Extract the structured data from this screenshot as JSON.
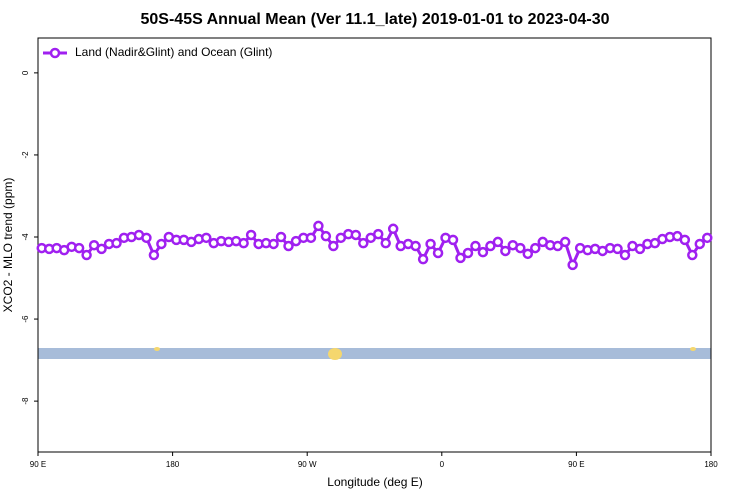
{
  "chart_data": {
    "type": "line",
    "title": "50S-45S Annual Mean (Ver 11.1_late)   2019-01-01 to 2023-04-30",
    "x_label": "Longitude (deg E)",
    "y_label": "XCO2 - MLO trend (ppm)",
    "xlim": [
      90,
      540
    ],
    "xticks": [
      {
        "value": 90,
        "label": "90 E"
      },
      180,
      {
        "value": 270,
        "label": "90 W"
      },
      {
        "value": 360,
        "label": "0"
      },
      {
        "value": 450,
        "label": "90 E"
      },
      {
        "value": 540,
        "label": "180"
      }
    ],
    "ylim": [
      -9.24,
      0.85
    ],
    "yticks": [
      0,
      -2,
      -4,
      -6,
      -8
    ],
    "legend": "upper left",
    "x": [
      92.5,
      97.5,
      102.5,
      107.5,
      112.5,
      117.5,
      122.5,
      127.5,
      132.5,
      137.5,
      142.5,
      147.5,
      152.5,
      157.5,
      162.5,
      167.5,
      172.5,
      177.5,
      182.5,
      187.5,
      192.5,
      197.5,
      202.5,
      207.5,
      212.5,
      217.5,
      222.5,
      227.5,
      232.5,
      237.5,
      242.5,
      247.5,
      252.5,
      257.5,
      262.5,
      267.5,
      272.5,
      277.5,
      282.5,
      287.5,
      292.5,
      297.5,
      302.5,
      307.5,
      312.5,
      317.5,
      322.5,
      327.5,
      332.5,
      337.5,
      342.5,
      347.5,
      352.5,
      357.5,
      362.5,
      367.5,
      372.5,
      377.5,
      382.5,
      387.5,
      392.5,
      397.5,
      402.5,
      407.5,
      412.5,
      417.5,
      422.5,
      427.5,
      432.5,
      437.5,
      442.5,
      447.5,
      452.5,
      457.5,
      462.5,
      467.5,
      472.5,
      477.5,
      482.5,
      487.5,
      492.5,
      497.5,
      502.5,
      507.5,
      512.5,
      517.5,
      522.5,
      527.5,
      532.5,
      537.5
    ],
    "series": [
      {
        "name": "Land (Nadir&Glint) and Ocean (Glint)",
        "color": "#a020f0",
        "values": [
          -4.27,
          -4.29,
          -4.27,
          -4.32,
          -4.24,
          -4.27,
          -4.44,
          -4.2,
          -4.29,
          -4.17,
          -4.15,
          -4.02,
          -4.0,
          -3.95,
          -4.02,
          -4.44,
          -4.17,
          -4.0,
          -4.07,
          -4.07,
          -4.12,
          -4.05,
          -4.02,
          -4.15,
          -4.1,
          -4.12,
          -4.1,
          -4.15,
          -3.95,
          -4.17,
          -4.15,
          -4.17,
          -4.0,
          -4.22,
          -4.1,
          -4.02,
          -4.02,
          -3.73,
          -3.98,
          -4.22,
          -4.02,
          -3.93,
          -3.95,
          -4.15,
          -4.02,
          -3.93,
          -4.15,
          -3.8,
          -4.22,
          -4.17,
          -4.22,
          -4.54,
          -4.17,
          -4.39,
          -4.02,
          -4.07,
          -4.51,
          -4.39,
          -4.22,
          -4.37,
          -4.22,
          -4.12,
          -4.34,
          -4.2,
          -4.27,
          -4.41,
          -4.27,
          -4.12,
          -4.2,
          -4.22,
          -4.12,
          -4.68,
          -4.27,
          -4.32,
          -4.29,
          -4.34,
          -4.27,
          -4.29,
          -4.44,
          -4.22,
          -4.29,
          -4.17,
          -4.15,
          -4.05,
          -4.0,
          -3.98,
          -4.07,
          -4.44,
          -4.17,
          -4.02
        ]
      }
    ]
  }
}
